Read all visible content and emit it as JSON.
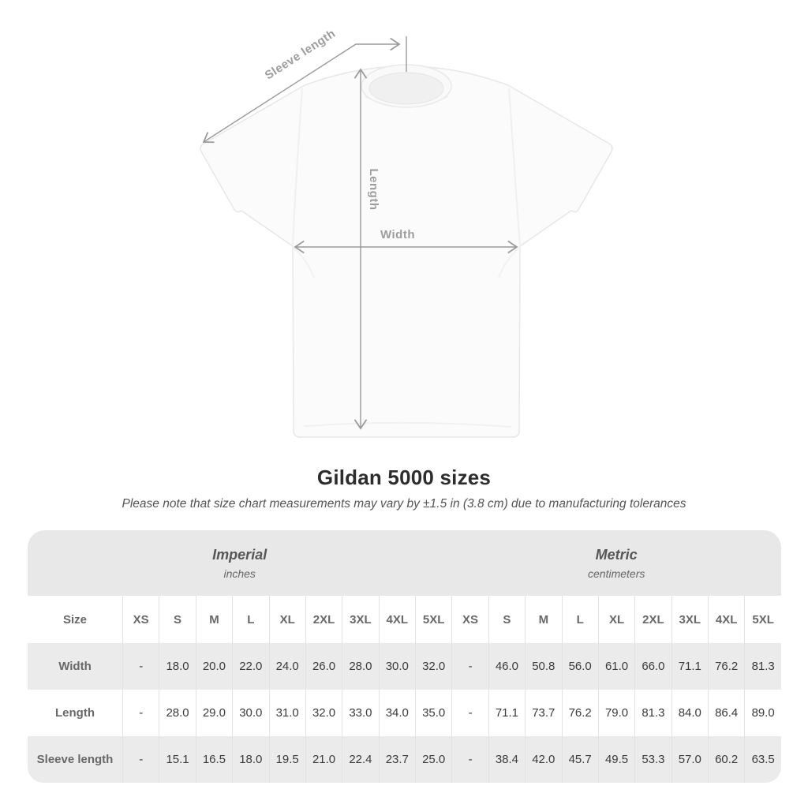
{
  "diagram": {
    "labels": {
      "sleeve_length": "Sleeve length",
      "length": "Length",
      "width": "Width"
    }
  },
  "title": "Gildan 5000 sizes",
  "subtitle": "Please note that size chart measurements may vary by ±1.5 in (3.8 cm) due to manufacturing tolerances",
  "table": {
    "size_header": "Size",
    "unit_groups": [
      {
        "name": "Imperial",
        "unit": "inches"
      },
      {
        "name": "Metric",
        "unit": "centimeters"
      }
    ],
    "sizes": [
      "XS",
      "S",
      "M",
      "L",
      "XL",
      "2XL",
      "3XL",
      "4XL",
      "5XL"
    ],
    "rows": [
      {
        "label": "Width",
        "imperial": [
          "-",
          "18.0",
          "20.0",
          "22.0",
          "24.0",
          "26.0",
          "28.0",
          "30.0",
          "32.0"
        ],
        "metric": [
          "-",
          "46.0",
          "50.8",
          "56.0",
          "61.0",
          "66.0",
          "71.1",
          "76.2",
          "81.3"
        ]
      },
      {
        "label": "Length",
        "imperial": [
          "-",
          "28.0",
          "29.0",
          "30.0",
          "31.0",
          "32.0",
          "33.0",
          "34.0",
          "35.0"
        ],
        "metric": [
          "-",
          "71.1",
          "73.7",
          "76.2",
          "79.0",
          "81.3",
          "84.0",
          "86.4",
          "89.0"
        ]
      },
      {
        "label": "Sleeve length",
        "imperial": [
          "-",
          "15.1",
          "16.5",
          "18.0",
          "19.5",
          "21.0",
          "22.4",
          "23.7",
          "25.0"
        ],
        "metric": [
          "-",
          "38.4",
          "42.0",
          "45.7",
          "49.5",
          "53.3",
          "57.0",
          "60.2",
          "63.5"
        ]
      }
    ]
  },
  "colors": {
    "table_header_band": "#e8e8e8",
    "row_stripe": "#ebebeb",
    "cell_divider": "#e2e2e2",
    "dimension_line": "#9a9a9a",
    "diagram_label_text": "#9d9d9d",
    "heading_text": "#2d2d2d",
    "label_text": "#686868",
    "value_text": "#3b3b3b"
  }
}
